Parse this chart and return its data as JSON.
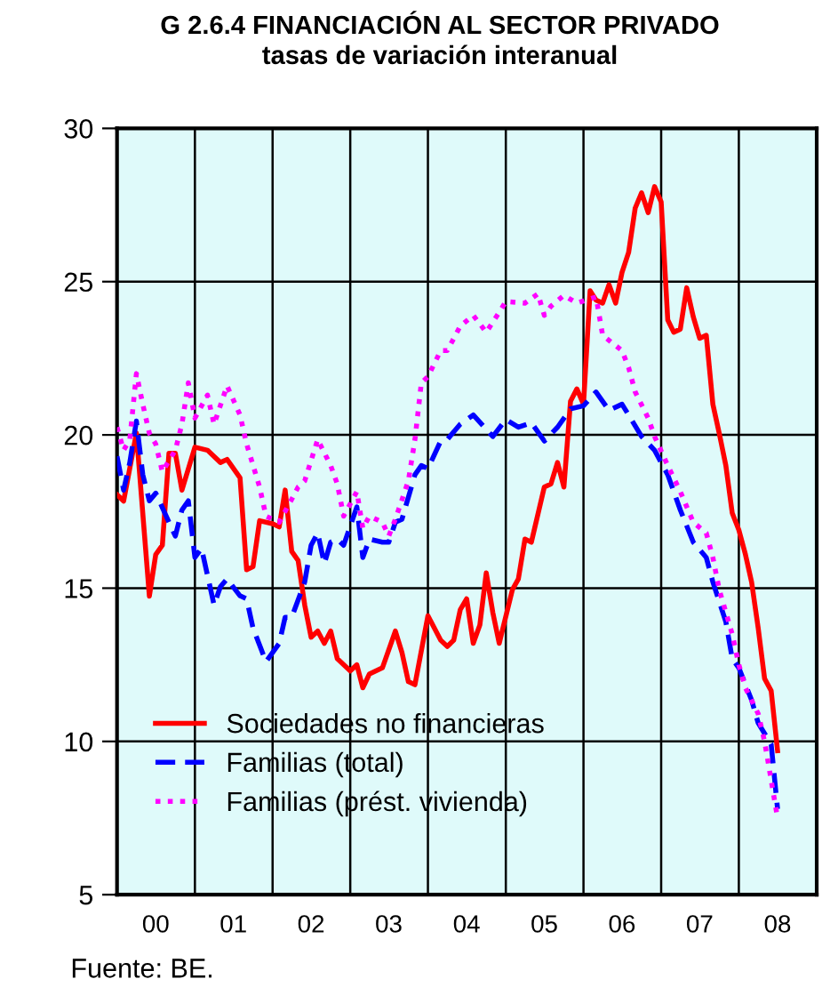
{
  "chart_data": {
    "type": "line",
    "title": "G 2.6.4 FINANCIACIÓN AL SECTOR PRIVADO",
    "subtitle": "tasas de variación interanual",
    "annotations": [
      "Fuente: BE."
    ],
    "xlim": [
      "2000",
      "2009"
    ],
    "ylim": [
      5,
      30
    ],
    "yticks": [
      5,
      10,
      15,
      20,
      25,
      30
    ],
    "xticks": [
      {
        "value": "2000-07",
        "label": "00"
      },
      {
        "value": "2001",
        "label": null
      },
      {
        "value": "2001-07",
        "label": "01"
      },
      {
        "value": "2002",
        "label": null
      },
      {
        "value": "2002-07",
        "label": "02"
      },
      {
        "value": "2003",
        "label": null
      },
      {
        "value": "2003-07",
        "label": "03"
      },
      {
        "value": "2004",
        "label": null
      },
      {
        "value": "2004-07",
        "label": "04"
      },
      {
        "value": "2005",
        "label": null
      },
      {
        "value": "2005-07",
        "label": "05"
      },
      {
        "value": "2006",
        "label": null
      },
      {
        "value": "2006-07",
        "label": "06"
      },
      {
        "value": "2007",
        "label": null
      },
      {
        "value": "2007-07",
        "label": "07"
      },
      {
        "value": "2008",
        "label": null
      },
      {
        "value": "2008-07",
        "label": "08"
      }
    ],
    "grid": true,
    "legend": "bottom left",
    "marker": "none",
    "series": [
      {
        "name": "Sociedades no financieras",
        "color": "#ff0000",
        "line_style": "solid",
        "x": [
          "2000-01",
          "2000-02",
          "2000-04",
          "2000-06",
          "2000-07",
          "2000-08",
          "2000-09",
          "2000-10",
          "2000-11",
          "2001-01",
          "2001-03",
          "2001-05",
          "2001-06",
          "2001-08",
          "2001-09",
          "2001-10",
          "2001-11",
          "2002-01",
          "2002-02",
          "2002-03",
          "2002-04",
          "2002-05",
          "2002-06",
          "2002-07",
          "2002-08",
          "2002-09",
          "2002-10",
          "2002-11",
          "2003-01",
          "2003-02",
          "2003-03",
          "2003-04",
          "2003-06",
          "2003-08",
          "2003-09",
          "2003-10",
          "2003-11",
          "2004-01",
          "2004-03",
          "2004-04",
          "2004-05",
          "2004-06",
          "2004-07",
          "2004-08",
          "2004-09",
          "2004-10",
          "2004-11",
          "2004-12",
          "2005-02",
          "2005-03",
          "2005-04",
          "2005-05",
          "2005-07",
          "2005-08",
          "2005-09",
          "2005-10",
          "2005-11",
          "2005-12",
          "2006-01",
          "2006-02",
          "2006-03",
          "2006-04",
          "2006-05",
          "2006-06",
          "2006-07",
          "2006-08",
          "2006-09",
          "2006-10",
          "2006-11",
          "2006-12",
          "2007-01",
          "2007-02",
          "2007-03",
          "2007-04",
          "2007-05",
          "2007-06",
          "2007-07",
          "2007-08",
          "2007-09",
          "2007-10",
          "2007-11",
          "2007-12",
          "2008-01",
          "2008-02",
          "2008-03",
          "2008-04",
          "2008-05",
          "2008-06",
          "2008-07"
        ],
        "values": [
          18.05,
          17.84,
          20.06,
          14.74,
          16.1,
          16.4,
          19.4,
          19.4,
          18.2,
          19.6,
          19.5,
          19.1,
          19.2,
          18.6,
          15.6,
          15.7,
          17.2,
          17.1,
          17.0,
          18.2,
          16.2,
          15.9,
          14.45,
          13.4,
          13.6,
          13.2,
          13.6,
          12.7,
          12.3,
          12.5,
          11.75,
          12.2,
          12.4,
          13.6,
          12.9,
          11.95,
          11.85,
          14.1,
          13.3,
          13.1,
          13.3,
          14.3,
          14.65,
          13.2,
          13.8,
          15.5,
          14.2,
          13.2,
          14.95,
          15.3,
          16.6,
          16.5,
          18.3,
          18.4,
          19.1,
          18.3,
          21.1,
          21.5,
          21.0,
          24.7,
          24.4,
          24.3,
          24.9,
          24.3,
          25.3,
          25.95,
          27.4,
          27.9,
          27.25,
          28.1,
          27.6,
          23.75,
          23.35,
          23.45,
          24.8,
          23.85,
          23.15,
          23.25,
          21.0,
          20.05,
          19.0,
          17.45,
          16.9,
          16.1,
          15.2,
          13.7,
          12.05,
          11.65,
          9.7
        ]
      },
      {
        "name": "Familias (total)",
        "color": "#0000ff",
        "line_style": "dashed",
        "x": [
          "2000-01",
          "2000-02",
          "2000-03",
          "2000-04",
          "2000-05",
          "2000-06",
          "2000-07",
          "2000-09",
          "2000-10",
          "2000-11",
          "2000-12",
          "2001-01",
          "2001-02",
          "2001-04",
          "2001-05",
          "2001-06",
          "2001-08",
          "2001-09",
          "2001-10",
          "2001-12",
          "2002-02",
          "2002-03",
          "2002-04",
          "2002-06",
          "2002-07",
          "2002-08",
          "2002-09",
          "2002-10",
          "2002-11",
          "2002-12",
          "2003-02",
          "2003-03",
          "2003-04",
          "2003-06",
          "2003-07",
          "2003-08",
          "2003-09",
          "2003-11",
          "2003-12",
          "2004-01",
          "2004-03",
          "2004-04",
          "2004-06",
          "2004-08",
          "2004-11",
          "2005-01",
          "2005-03",
          "2005-05",
          "2005-07",
          "2005-09",
          "2005-11",
          "2006-01",
          "2006-03",
          "2006-05",
          "2006-07",
          "2006-08",
          "2006-10",
          "2006-12",
          "2007-02",
          "2007-04",
          "2007-06",
          "2007-08",
          "2007-09",
          "2007-11",
          "2007-12",
          "2008-01",
          "2008-03",
          "2008-04",
          "2008-06",
          "2008-07"
        ],
        "values": [
          19.3,
          18.2,
          19.1,
          20.45,
          18.7,
          17.85,
          18.1,
          17.15,
          16.7,
          17.55,
          17.85,
          16.0,
          16.3,
          14.45,
          15.05,
          15.3,
          14.75,
          14.65,
          13.7,
          12.6,
          13.2,
          14.05,
          14.05,
          15.2,
          16.4,
          16.8,
          15.8,
          16.5,
          16.6,
          16.4,
          17.65,
          16.0,
          16.6,
          16.5,
          16.5,
          17.15,
          17.25,
          18.7,
          19.0,
          18.9,
          19.8,
          19.85,
          20.35,
          20.65,
          19.95,
          20.5,
          20.25,
          20.4,
          19.8,
          20.25,
          20.85,
          20.95,
          21.4,
          20.8,
          21.0,
          20.65,
          19.95,
          19.5,
          18.7,
          17.55,
          16.5,
          16.0,
          15.2,
          13.9,
          12.7,
          12.4,
          11.35,
          10.6,
          9.9,
          7.8
        ]
      },
      {
        "name": "Familias (prést. vivienda)",
        "color": "#ff00ff",
        "line_style": "dotted",
        "x": [
          "2000-01",
          "2000-02",
          "2000-03",
          "2000-04",
          "2000-05",
          "2000-06",
          "2000-07",
          "2000-08",
          "2000-10",
          "2000-11",
          "2000-12",
          "2001-01",
          "2001-03",
          "2001-04",
          "2001-06",
          "2001-08",
          "2001-09",
          "2001-11",
          "2001-12",
          "2002-02",
          "2002-04",
          "2002-05",
          "2002-06",
          "2002-08",
          "2002-10",
          "2002-11",
          "2002-12",
          "2003-02",
          "2003-03",
          "2003-04",
          "2003-06",
          "2003-07",
          "2003-08",
          "2003-10",
          "2003-11",
          "2003-12",
          "2004-01",
          "2004-03",
          "2004-04",
          "2004-06",
          "2004-08",
          "2004-10",
          "2004-12",
          "2005-01",
          "2005-04",
          "2005-06",
          "2005-07",
          "2005-08",
          "2005-10",
          "2005-12",
          "2006-03",
          "2006-04",
          "2006-07",
          "2006-08",
          "2006-09",
          "2006-11",
          "2006-12",
          "2007-02",
          "2007-04",
          "2007-06",
          "2007-08",
          "2007-09",
          "2007-10",
          "2007-12",
          "2008-01",
          "2008-02",
          "2008-04",
          "2008-05",
          "2008-07"
        ],
        "values": [
          20.25,
          19.5,
          19.85,
          22.0,
          21.0,
          20.05,
          19.7,
          18.8,
          19.5,
          20.35,
          21.7,
          20.55,
          21.3,
          20.35,
          21.6,
          20.65,
          19.7,
          18.3,
          17.35,
          17.15,
          17.9,
          18.3,
          18.5,
          19.85,
          19.0,
          18.4,
          17.35,
          18.15,
          16.95,
          17.35,
          17.15,
          16.7,
          17.25,
          18.5,
          19.85,
          21.7,
          21.9,
          22.75,
          22.75,
          23.55,
          23.9,
          23.35,
          24.0,
          24.35,
          24.3,
          24.6,
          23.9,
          24.2,
          24.55,
          24.3,
          24.5,
          23.25,
          22.75,
          22.2,
          21.4,
          20.55,
          19.95,
          19.0,
          18.15,
          17.15,
          16.8,
          16.0,
          14.95,
          13.5,
          12.5,
          11.75,
          10.9,
          10.0,
          7.5
        ]
      }
    ]
  }
}
